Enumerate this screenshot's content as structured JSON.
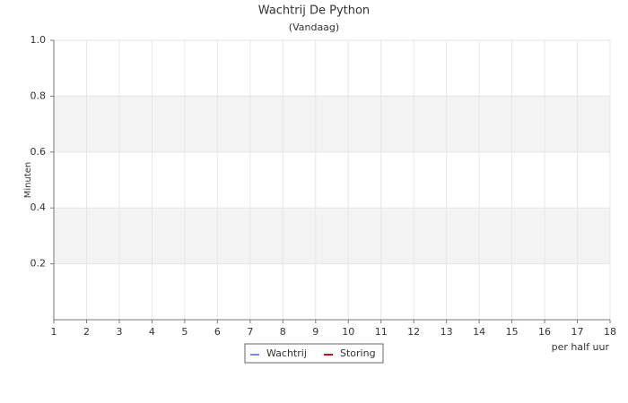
{
  "chart_data": {
    "type": "line",
    "title": "Wachtrij De Python",
    "subtitle": "(Vandaag)",
    "x_label": "per half uur",
    "y_label": "Minuten",
    "x": [
      1,
      2,
      3,
      4,
      5,
      6,
      7,
      8,
      9,
      10,
      11,
      12,
      13,
      14,
      15,
      16,
      17,
      18
    ],
    "series": [
      {
        "name": "Wachtrij",
        "color": "#6e8fe6",
        "values": [
          null,
          null,
          null,
          null,
          null,
          null,
          null,
          null,
          null,
          null,
          null,
          null,
          null,
          null,
          null,
          null,
          null,
          null
        ]
      },
      {
        "name": "Storing",
        "color": "#c0141e",
        "values": [
          null,
          null,
          null,
          null,
          null,
          null,
          null,
          null,
          null,
          null,
          null,
          null,
          null,
          null,
          null,
          null,
          null,
          null
        ]
      }
    ],
    "xlim": [
      1,
      18
    ],
    "xticks": [
      1,
      2,
      3,
      4,
      5,
      6,
      7,
      8,
      9,
      10,
      11,
      12,
      13,
      14,
      15,
      16,
      17,
      18
    ],
    "ylim": [
      0,
      1
    ],
    "yticks": [
      0.2,
      0.4,
      0.6,
      0.8,
      {
        "value": 1,
        "label": "1.0"
      }
    ],
    "grid": true,
    "alternate_bands": true,
    "legend": "bottom"
  }
}
